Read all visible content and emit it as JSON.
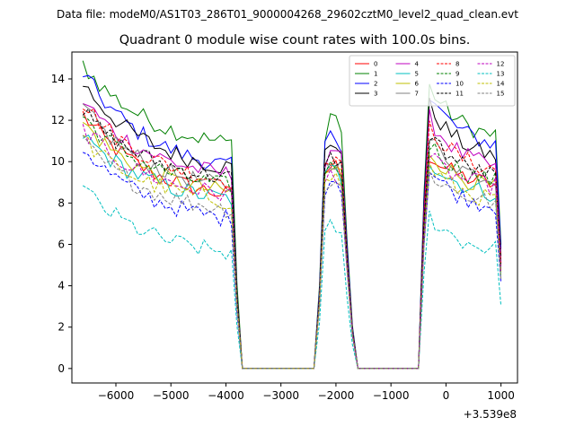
{
  "suptitle": "Data file: modeM0/AS1T03_286T01_9000004268_29602cztM0_level2_quad_clean.evt",
  "chart_data": {
    "type": "line",
    "title": "Quadrant 0 module wise count rates with 100.0s bins.",
    "xlabel": "",
    "ylabel": "",
    "x_offset_label": "+3.539e8",
    "xlim": [
      -6800,
      1300
    ],
    "ylim": [
      -0.7,
      15.3
    ],
    "x_ticks": [
      -6000,
      -5000,
      -4000,
      -3000,
      -2000,
      -1000,
      0,
      1000
    ],
    "x_tick_labels": [
      "−6000",
      "−5000",
      "−4000",
      "−3000",
      "−2000",
      "−1000",
      "0",
      "1000"
    ],
    "y_ticks": [
      0,
      2,
      4,
      6,
      8,
      10,
      12,
      14
    ],
    "y_tick_labels": [
      "0",
      "2",
      "4",
      "6",
      "8",
      "10",
      "12",
      "14"
    ],
    "grid": false,
    "legend_position": "top-right",
    "legend_columns": 4,
    "segments": [
      {
        "x0": -6600,
        "x1": -3900,
        "shape": "decay"
      },
      {
        "x0": -2200,
        "x1": -1900,
        "shape": "hump"
      },
      {
        "x0": -300,
        "x1": 1000,
        "shape": "decay"
      }
    ],
    "gaps": [
      [
        -3700,
        -2400
      ],
      [
        -1600,
        -500
      ]
    ],
    "series": [
      {
        "name": "0",
        "color": "#ff0000",
        "dash": false,
        "seg_levels": [
          [
            12.3,
            7.9
          ],
          [
            9.5,
            9.8
          ],
          [
            10.3,
            8.7
          ]
        ]
      },
      {
        "name": "1",
        "color": "#008000",
        "dash": false,
        "seg_levels": [
          [
            14.7,
            10.4
          ],
          [
            11.4,
            12.4
          ],
          [
            13.6,
            10.9
          ]
        ]
      },
      {
        "name": "2",
        "color": "#0000ff",
        "dash": false,
        "seg_levels": [
          [
            14.3,
            9.2
          ],
          [
            10.9,
            11.2
          ],
          [
            13.2,
            10.5
          ]
        ]
      },
      {
        "name": "3",
        "color": "#000000",
        "dash": false,
        "seg_levels": [
          [
            13.8,
            9.2
          ],
          [
            10.4,
            11.0
          ],
          [
            12.7,
            9.9
          ]
        ]
      },
      {
        "name": "4",
        "color": "#bf00bf",
        "dash": false,
        "seg_levels": [
          [
            13.0,
            8.9
          ],
          [
            10.1,
            10.7
          ],
          [
            12.1,
            9.4
          ]
        ]
      },
      {
        "name": "5",
        "color": "#00bfbf",
        "dash": false,
        "seg_levels": [
          [
            11.3,
            7.8
          ],
          [
            9.2,
            9.6
          ],
          [
            10.1,
            8.2
          ]
        ]
      },
      {
        "name": "6",
        "color": "#bfbf00",
        "dash": false,
        "seg_levels": [
          [
            11.9,
            8.1
          ],
          [
            9.4,
            9.6
          ],
          [
            10.5,
            8.5
          ]
        ]
      },
      {
        "name": "7",
        "color": "#808080",
        "dash": false,
        "seg_levels": [
          [
            12.6,
            8.3
          ],
          [
            9.8,
            10.1
          ],
          [
            11.1,
            8.9
          ]
        ]
      },
      {
        "name": "8",
        "color": "#ff0000",
        "dash": true,
        "seg_levels": [
          [
            12.9,
            8.6
          ],
          [
            9.6,
            10.3
          ],
          [
            11.7,
            9.3
          ]
        ]
      },
      {
        "name": "9",
        "color": "#008000",
        "dash": true,
        "seg_levels": [
          [
            12.2,
            8.4
          ],
          [
            9.3,
            9.9
          ],
          [
            10.9,
            8.8
          ]
        ]
      },
      {
        "name": "10",
        "color": "#0000ff",
        "dash": true,
        "seg_levels": [
          [
            10.7,
            6.8
          ],
          [
            8.8,
            9.2
          ],
          [
            9.6,
            7.6
          ]
        ]
      },
      {
        "name": "11",
        "color": "#000000",
        "dash": true,
        "seg_levels": [
          [
            12.4,
            8.8
          ],
          [
            9.7,
            10.2
          ],
          [
            11.4,
            9.0
          ]
        ]
      },
      {
        "name": "12",
        "color": "#bf00bf",
        "dash": true,
        "seg_levels": [
          [
            11.6,
            8.0
          ],
          [
            9.0,
            9.5
          ],
          [
            10.2,
            8.6
          ]
        ]
      },
      {
        "name": "13",
        "color": "#00bfbf",
        "dash": true,
        "seg_levels": [
          [
            8.7,
            5.2
          ],
          [
            6.3,
            6.9
          ],
          [
            7.4,
            5.5
          ]
        ]
      },
      {
        "name": "14",
        "color": "#bfbf00",
        "dash": true,
        "seg_levels": [
          [
            11.1,
            7.7
          ],
          [
            8.9,
            9.3
          ],
          [
            9.8,
            7.9
          ]
        ]
      },
      {
        "name": "15",
        "color": "#808080",
        "dash": true,
        "seg_levels": [
          [
            10.9,
            7.3
          ],
          [
            8.6,
            9.1
          ],
          [
            9.5,
            7.8
          ]
        ]
      }
    ]
  }
}
